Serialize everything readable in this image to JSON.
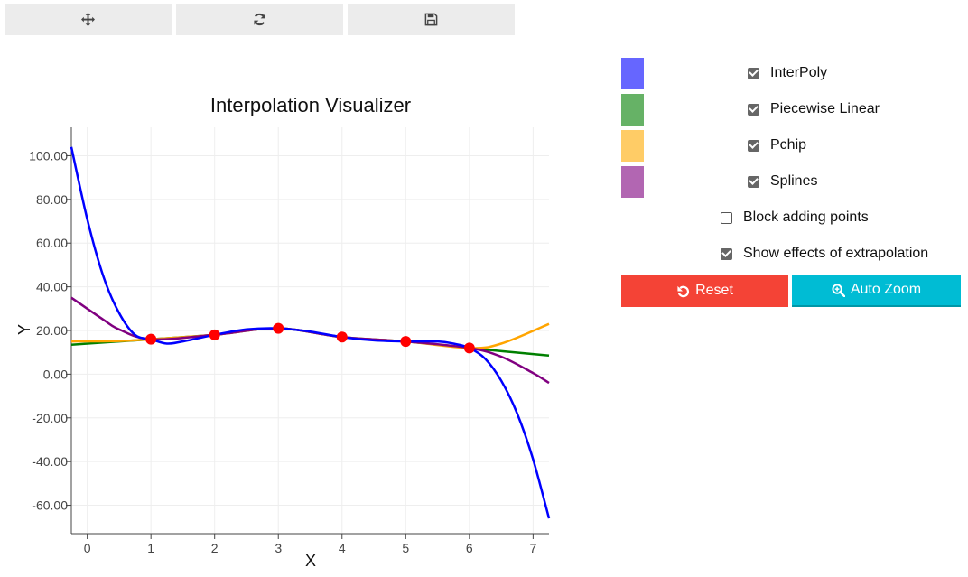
{
  "toolbar": {
    "buttons": [
      {
        "icon": "move-icon"
      },
      {
        "icon": "refresh-icon"
      },
      {
        "icon": "save-icon"
      }
    ]
  },
  "legend": [
    {
      "label": "InterPoly",
      "color": "#6666ff",
      "checked": true
    },
    {
      "label": "Piecewise Linear",
      "color": "#66b266",
      "checked": true
    },
    {
      "label": "Pchip",
      "color": "#ffcc66",
      "checked": true
    },
    {
      "label": "Splines",
      "color": "#b266b2",
      "checked": true
    }
  ],
  "options": {
    "block_adding_points": {
      "label": "Block adding points",
      "checked": false
    },
    "show_extrapolation": {
      "label": "Show effects of extrapolation",
      "checked": true
    }
  },
  "buttons": {
    "reset": {
      "label": "Reset",
      "color": "#f44336",
      "icon": "undo-icon"
    },
    "auto_zoom": {
      "label": "Auto Zoom",
      "color": "#00bcd4",
      "icon": "zoom-in-icon"
    }
  },
  "chart_data": {
    "type": "line",
    "title": "Interpolation Visualizer",
    "xlabel": "X",
    "ylabel": "Y",
    "xlim": [
      -0.25,
      7.25
    ],
    "ylim": [
      -73,
      113
    ],
    "xticks": [
      "0",
      "1",
      "2",
      "3",
      "4",
      "5",
      "6",
      "7"
    ],
    "yticks": [
      "100.00",
      "80.00",
      "60.00",
      "40.00",
      "20.00",
      "0.00",
      "-20.00",
      "-40.00",
      "-60.00"
    ],
    "points": {
      "x": [
        1,
        2,
        3,
        4,
        5,
        6
      ],
      "y": [
        16,
        18,
        21,
        17,
        15,
        12
      ],
      "color": "#ff0000"
    },
    "series": [
      {
        "color": "#008000",
        "x": [
          -0.25,
          1,
          2,
          3,
          4,
          5,
          6,
          7.25
        ],
        "y": [
          13.5,
          16,
          18,
          21,
          17,
          15,
          12,
          8.5
        ]
      },
      {
        "color": "#ffa500",
        "x": [
          -0.25,
          0.5,
          1,
          2,
          3,
          4,
          5,
          6,
          6.5,
          7.25
        ],
        "y": [
          15,
          15.2,
          16,
          18,
          21,
          17,
          15,
          12,
          14,
          23
        ]
      },
      {
        "color": "#800080",
        "x": [
          -0.25,
          0.25,
          0.5,
          1,
          2,
          3,
          4,
          5,
          6,
          6.5,
          7,
          7.25
        ],
        "y": [
          35,
          25,
          20.5,
          16,
          18,
          21,
          17,
          15,
          12,
          8,
          0.5,
          -4
        ]
      },
      {
        "color": "#0000ff",
        "x": [
          -0.25,
          0,
          0.25,
          0.5,
          0.75,
          1,
          1.25,
          1.5,
          2,
          2.5,
          3,
          3.5,
          4,
          4.5,
          5,
          5.5,
          5.75,
          6,
          6.25,
          6.5,
          6.75,
          7,
          7.25
        ],
        "y": [
          104,
          71,
          45,
          28,
          18,
          16,
          14,
          15,
          18,
          20.5,
          21,
          19.5,
          17,
          15.5,
          15,
          15,
          14,
          12,
          7,
          -3,
          -18,
          -39,
          -66
        ]
      }
    ]
  }
}
